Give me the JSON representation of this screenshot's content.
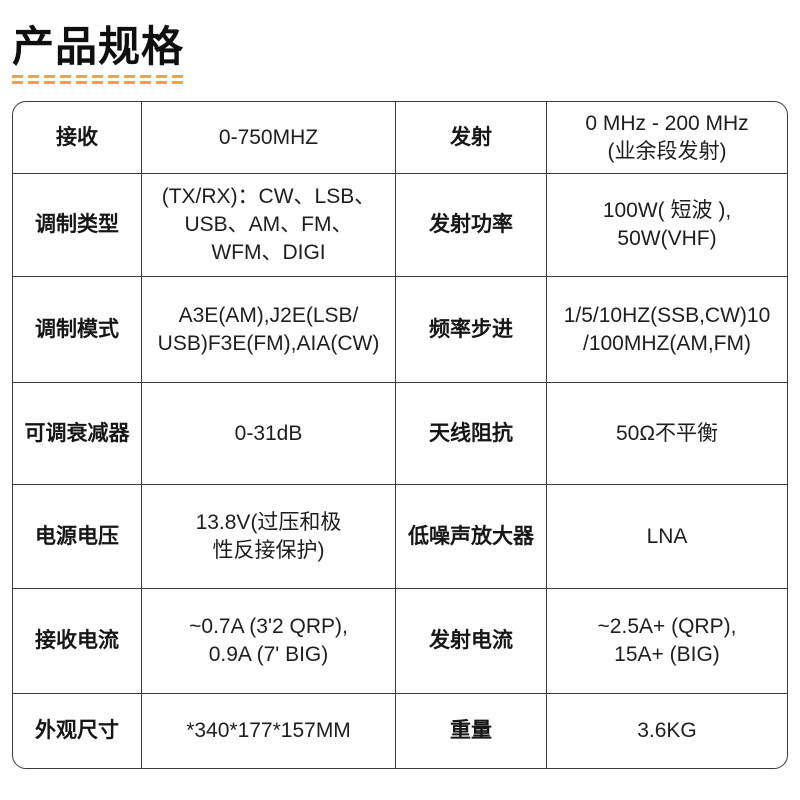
{
  "header": {
    "title": "产品规格"
  },
  "colors": {
    "accent_dash": "#F2A33C",
    "table_border": "#3b3b3b",
    "text": "#1e1e1e"
  },
  "spec_table": {
    "rows": [
      {
        "c0": "接收",
        "c1": "0-750MHZ",
        "c2": "发射",
        "c3": "0 MHz - 200 MHz\n(业余段发射)"
      },
      {
        "c0": "调制类型",
        "c1": "(TX/RX)：CW、LSB、\nUSB、AM、FM、\nWFM、DIGI",
        "c2": "发射功率",
        "c3": "100W( 短波 ),\n50W(VHF)"
      },
      {
        "c0": "调制模式",
        "c1": "A3E(AM),J2E(LSB/\nUSB)F3E(FM),AIA(CW)",
        "c2": "频率步进",
        "c3": "1/5/10HZ(SSB,CW)10\n/100MHZ(AM,FM)"
      },
      {
        "c0": "可调衰减器",
        "c1": "0-31dB",
        "c2": "天线阻抗",
        "c3": "50Ω不平衡"
      },
      {
        "c0": "电源电压",
        "c1": "13.8V(过压和极\n性反接保护)",
        "c2": "低噪声放大器",
        "c3": "LNA"
      },
      {
        "c0": "接收电流",
        "c1": "~0.7A (3'2 QRP),\n0.9A (7' BIG)",
        "c2": "发射电流",
        "c3": "~2.5A+ (QRP),\n15A+ (BIG)"
      },
      {
        "c0": "外观尺寸",
        "c1": "*340*177*157MM",
        "c2": "重量",
        "c3": "3.6KG"
      }
    ]
  }
}
